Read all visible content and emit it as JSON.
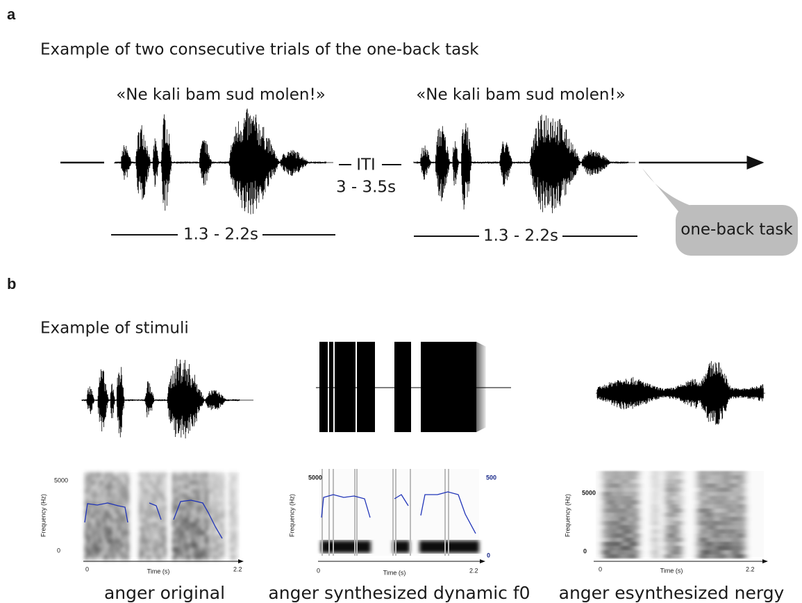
{
  "panel_a": {
    "label": "a",
    "title": "Example of two consecutive trials of the one-back task",
    "trials": [
      {
        "sentence": "«Ne kali bam sud molen!»",
        "duration": "1.3 - 2.2s"
      },
      {
        "sentence": "«Ne kali bam sud molen!»",
        "duration": "1.3 - 2.2s"
      }
    ],
    "iti": "ITI",
    "iti_duration": "3 - 3.5s",
    "callout": "one-back task"
  },
  "panel_b": {
    "label": "b",
    "title": "Example of stimuli",
    "stimuli": [
      {
        "caption": "anger original",
        "y_axis": "Frequency (Hz)",
        "y_ticks": [
          "5000",
          "0"
        ],
        "x_axis": "Time (s)",
        "x_ticks": [
          "0",
          "2.2"
        ]
      },
      {
        "caption": "anger synthesized dynamic f0",
        "y_axis": "Frequency (Hz)",
        "y_ticks": [
          "5000"
        ],
        "y2_ticks": [
          "500",
          "0"
        ],
        "x_axis": "Time (s)",
        "x_ticks": [
          "0",
          "2.2"
        ]
      },
      {
        "caption": "anger esynthesized nergy",
        "y_axis": "Frequency (Hz)",
        "y_ticks": [
          "5000",
          "0"
        ],
        "x_axis": "Time (s)",
        "x_ticks": [
          "0",
          "2.2"
        ]
      }
    ]
  }
}
